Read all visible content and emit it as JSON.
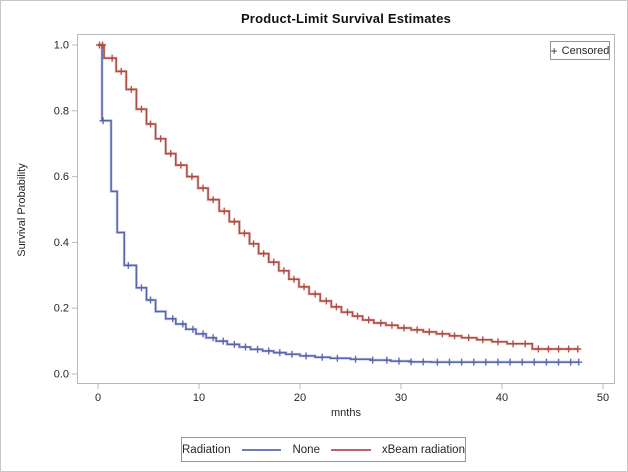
{
  "figure": {
    "title": "Product-Limit Survival Estimates",
    "background": "#ffffff",
    "border_color": "#c6c6c6",
    "frame_color": "#b9b9b9"
  },
  "censored_legend": {
    "marker": "+",
    "label": "Censored"
  },
  "legend": {
    "title": "Radiation",
    "entries": [
      {
        "label": "None",
        "color": "#5565ad"
      },
      {
        "label": "xBeam radiation",
        "color": "#af4a42"
      }
    ]
  },
  "chart_data": {
    "type": "line",
    "subtype": "kaplan-meier-step-survival",
    "title": "Product-Limit Survival Estimates",
    "xlabel": "mnths",
    "ylabel": "Survival Probability",
    "xlim": [
      -2.1,
      51.2
    ],
    "ylim": [
      -0.03,
      1.03
    ],
    "grid": false,
    "legend_position": "bottom",
    "x_ticks": [
      0,
      10,
      20,
      30,
      40,
      50
    ],
    "x_tick_labels": [
      "0",
      "10",
      "20",
      "30",
      "40",
      "50"
    ],
    "y_ticks": [
      0.0,
      0.2,
      0.4,
      0.6,
      0.8,
      1.0
    ],
    "y_tick_labels": [
      "0.0",
      "0.2",
      "0.4",
      "0.6",
      "0.8",
      "1.0"
    ],
    "censored_marker": "+",
    "series": [
      {
        "name": "None",
        "color": "#5565ad",
        "end_time": 47.6,
        "steps": [
          [
            0,
            1.0
          ],
          [
            0.4,
            0.77
          ],
          [
            1.3,
            0.555
          ],
          [
            1.9,
            0.43
          ],
          [
            2.6,
            0.33
          ],
          [
            3.8,
            0.262
          ],
          [
            4.8,
            0.225
          ],
          [
            5.7,
            0.19
          ],
          [
            6.7,
            0.168
          ],
          [
            7.7,
            0.152
          ],
          [
            8.7,
            0.136
          ],
          [
            9.7,
            0.122
          ],
          [
            10.7,
            0.11
          ],
          [
            11.7,
            0.1
          ],
          [
            12.8,
            0.09
          ],
          [
            14.0,
            0.082
          ],
          [
            15.1,
            0.075
          ],
          [
            16.3,
            0.07
          ],
          [
            17.4,
            0.065
          ],
          [
            18.6,
            0.06
          ],
          [
            20.0,
            0.055
          ],
          [
            21.5,
            0.051
          ],
          [
            23.0,
            0.048
          ],
          [
            25.0,
            0.045
          ],
          [
            27.0,
            0.042
          ],
          [
            29.0,
            0.039
          ],
          [
            31.0,
            0.037
          ],
          [
            33.0,
            0.036
          ]
        ],
        "censored_times": [
          0.5,
          3.0,
          4.3,
          5.2,
          7.4,
          8.4,
          9.4,
          10.4,
          11.4,
          12.4,
          13.5,
          14.6,
          15.8,
          16.9,
          18.0,
          19.2,
          20.6,
          22.2,
          23.7,
          25.5,
          27.2,
          28.6,
          29.8,
          31.0,
          32.2,
          33.6,
          34.8,
          36.0,
          37.2,
          38.4,
          39.6,
          40.8,
          42.0,
          43.2,
          44.4,
          45.6,
          46.8,
          47.6
        ]
      },
      {
        "name": "xBeam radiation",
        "color": "#af4a42",
        "end_time": 47.6,
        "steps": [
          [
            0,
            1.0
          ],
          [
            0.6,
            0.96
          ],
          [
            1.8,
            0.92
          ],
          [
            2.8,
            0.865
          ],
          [
            3.8,
            0.805
          ],
          [
            4.8,
            0.76
          ],
          [
            5.7,
            0.715
          ],
          [
            6.7,
            0.67
          ],
          [
            7.7,
            0.635
          ],
          [
            8.8,
            0.6
          ],
          [
            9.9,
            0.565
          ],
          [
            10.9,
            0.53
          ],
          [
            12.0,
            0.495
          ],
          [
            13.0,
            0.463
          ],
          [
            14.0,
            0.428
          ],
          [
            15.0,
            0.396
          ],
          [
            15.9,
            0.366
          ],
          [
            16.9,
            0.34
          ],
          [
            17.9,
            0.314
          ],
          [
            18.9,
            0.288
          ],
          [
            19.9,
            0.265
          ],
          [
            20.9,
            0.243
          ],
          [
            22.0,
            0.222
          ],
          [
            23.1,
            0.204
          ],
          [
            24.1,
            0.188
          ],
          [
            25.2,
            0.176
          ],
          [
            26.2,
            0.164
          ],
          [
            27.3,
            0.155
          ],
          [
            28.5,
            0.148
          ],
          [
            29.7,
            0.14
          ],
          [
            31.0,
            0.134
          ],
          [
            32.2,
            0.128
          ],
          [
            33.5,
            0.122
          ],
          [
            34.8,
            0.116
          ],
          [
            36.0,
            0.11
          ],
          [
            37.5,
            0.104
          ],
          [
            39.0,
            0.098
          ],
          [
            40.5,
            0.092
          ],
          [
            43.0,
            0.076
          ]
        ],
        "censored_times": [
          0.15,
          0.45,
          1.4,
          2.3,
          3.3,
          4.3,
          5.2,
          6.2,
          7.2,
          8.2,
          9.3,
          10.4,
          11.4,
          12.5,
          13.5,
          14.5,
          15.4,
          16.4,
          17.4,
          18.4,
          19.4,
          20.4,
          21.5,
          22.6,
          23.6,
          24.7,
          25.7,
          26.8,
          28.0,
          29.1,
          30.3,
          31.6,
          32.8,
          34.1,
          35.3,
          36.7,
          38.1,
          39.6,
          41.1,
          42.3,
          43.6,
          44.6,
          45.6,
          46.6,
          47.5
        ]
      }
    ]
  }
}
